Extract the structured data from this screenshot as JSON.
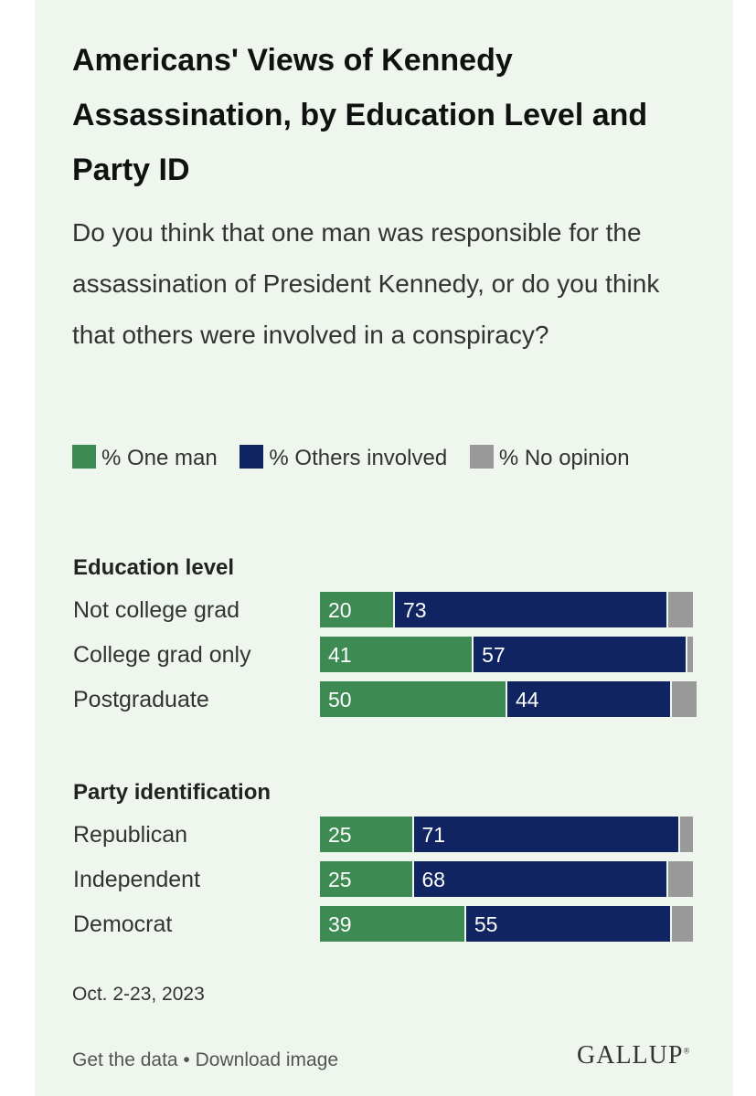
{
  "title": "Americans' Views of Kennedy Assassination, by Education Level and Party ID",
  "subtitle": "Do you think that one man was responsible for the assassination of President Kennedy, or do you think that others were involved in a conspiracy?",
  "legend": [
    {
      "label": "% One man",
      "color": "#3d8b53"
    },
    {
      "label": "% Others involved",
      "color": "#0f2461"
    },
    {
      "label": "% No opinion",
      "color": "#999999"
    }
  ],
  "chart_data": {
    "type": "bar",
    "orientation": "horizontal",
    "stacked": true,
    "groups": [
      {
        "header": "Education level",
        "categories": [
          "Not college grad",
          "College grad only",
          "Postgraduate"
        ],
        "series": [
          {
            "name": "% One man",
            "values": [
              20,
              41,
              50
            ]
          },
          {
            "name": "% Others involved",
            "values": [
              73,
              57,
              44
            ]
          },
          {
            "name": "% No opinion",
            "values": [
              7,
              2,
              7
            ]
          }
        ]
      },
      {
        "header": "Party identification",
        "categories": [
          "Republican",
          "Independent",
          "Democrat"
        ],
        "series": [
          {
            "name": "% One man",
            "values": [
              25,
              25,
              39
            ]
          },
          {
            "name": "% Others involved",
            "values": [
              71,
              68,
              55
            ]
          },
          {
            "name": "% No opinion",
            "values": [
              4,
              7,
              6
            ]
          }
        ]
      }
    ],
    "colors": [
      "#3d8b53",
      "#0f2461",
      "#999999"
    ],
    "labeled_series": [
      0,
      1
    ],
    "xlim": [
      0,
      100
    ]
  },
  "footnote": "Oct. 2-23, 2023",
  "footer": {
    "get_data": "Get the data",
    "separator": " • ",
    "download": "Download image"
  },
  "logo": "GALLUP"
}
